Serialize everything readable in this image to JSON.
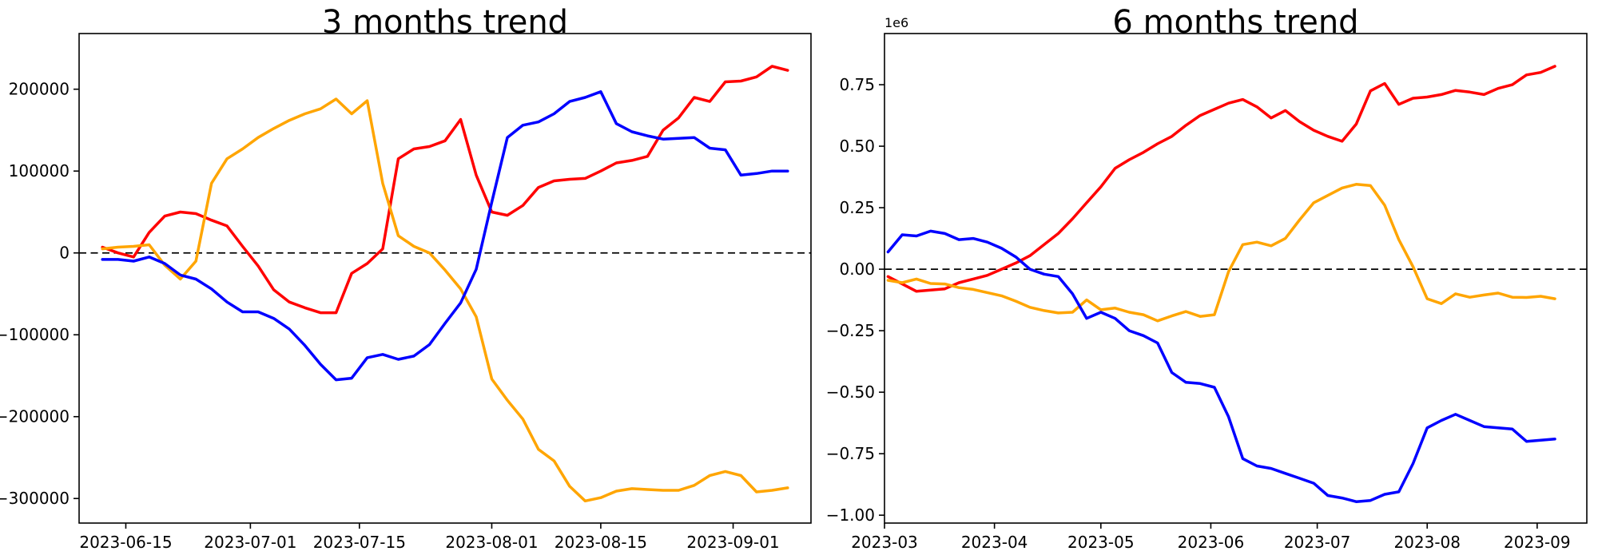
{
  "chart_data": [
    {
      "type": "line",
      "title": "3 months trend",
      "xlabel": "",
      "ylabel": "",
      "grid": false,
      "legend": "none",
      "zero_line_dashed": true,
      "xlim": [
        "2023-06-09",
        "2023-09-11"
      ],
      "ylim": [
        -330000,
        268000
      ],
      "x_ticks": [
        {
          "date": "2023-06-15",
          "label": "2023-06-15"
        },
        {
          "date": "2023-07-01",
          "label": "2023-07-01"
        },
        {
          "date": "2023-07-15",
          "label": "2023-07-15"
        },
        {
          "date": "2023-08-01",
          "label": "2023-08-01"
        },
        {
          "date": "2023-08-15",
          "label": "2023-08-15"
        },
        {
          "date": "2023-09-01",
          "label": "2023-09-01"
        }
      ],
      "y_ticks": [
        {
          "value": 200000,
          "label": "200000"
        },
        {
          "value": 100000,
          "label": "100000"
        },
        {
          "value": 0,
          "label": "0"
        },
        {
          "value": -100000,
          "label": "−100000"
        },
        {
          "value": -200000,
          "label": "−200000"
        },
        {
          "value": -300000,
          "label": "−300000"
        }
      ],
      "dates": [
        "2023-06-12",
        "2023-06-14",
        "2023-06-16",
        "2023-06-18",
        "2023-06-20",
        "2023-06-22",
        "2023-06-24",
        "2023-06-26",
        "2023-06-28",
        "2023-06-30",
        "2023-07-02",
        "2023-07-04",
        "2023-07-06",
        "2023-07-08",
        "2023-07-10",
        "2023-07-12",
        "2023-07-14",
        "2023-07-16",
        "2023-07-18",
        "2023-07-20",
        "2023-07-22",
        "2023-07-24",
        "2023-07-26",
        "2023-07-28",
        "2023-07-30",
        "2023-08-01",
        "2023-08-03",
        "2023-08-05",
        "2023-08-07",
        "2023-08-09",
        "2023-08-11",
        "2023-08-13",
        "2023-08-15",
        "2023-08-17",
        "2023-08-19",
        "2023-08-21",
        "2023-08-23",
        "2023-08-25",
        "2023-08-27",
        "2023-08-29",
        "2023-08-31",
        "2023-09-02",
        "2023-09-04",
        "2023-09-06",
        "2023-09-08"
      ],
      "series": [
        {
          "name": "red-line",
          "color": "#ff0000",
          "values": [
            7000,
            0,
            -5000,
            25000,
            45000,
            50000,
            48000,
            40000,
            33000,
            8000,
            -16000,
            -45000,
            -60000,
            -67000,
            -73000,
            -73000,
            -25000,
            -13000,
            5000,
            115000,
            127000,
            130000,
            137000,
            163000,
            95000,
            50000,
            46000,
            58000,
            80000,
            88000,
            90000,
            91000,
            100000,
            110000,
            113000,
            118000,
            150000,
            165000,
            190000,
            185000,
            209000,
            210000,
            215000,
            228000,
            223000
          ]
        },
        {
          "name": "orange-line",
          "color": "#ffa500",
          "values": [
            5000,
            7000,
            8000,
            10000,
            -15000,
            -32000,
            -10000,
            85000,
            115000,
            127000,
            141000,
            152000,
            162000,
            170000,
            176000,
            188000,
            170000,
            186000,
            85000,
            21000,
            8000,
            0,
            -21000,
            -44000,
            -78000,
            -154000,
            -180000,
            -203000,
            -240000,
            -254000,
            -285000,
            -303000,
            -299000,
            -291000,
            -288000,
            -289000,
            -290000,
            -290000,
            -284000,
            -272000,
            -267000,
            -272000,
            -292000,
            -290000,
            -287000
          ]
        },
        {
          "name": "blue-line",
          "color": "#0000ff",
          "values": [
            -8000,
            -8000,
            -10000,
            -5000,
            -13000,
            -27000,
            -32000,
            -44000,
            -60000,
            -72000,
            -72000,
            -80000,
            -93000,
            -113000,
            -136000,
            -155000,
            -153000,
            -128000,
            -124000,
            -130000,
            -126000,
            -112000,
            -86000,
            -61000,
            -20000,
            62000,
            141000,
            156000,
            160000,
            170000,
            185000,
            190000,
            197000,
            158000,
            148000,
            143000,
            139000,
            140000,
            141000,
            128000,
            126000,
            95000,
            97000,
            100000,
            100000
          ]
        }
      ]
    },
    {
      "type": "line",
      "title": "6 months trend",
      "xlabel": "",
      "ylabel": "",
      "grid": false,
      "legend": "none",
      "zero_line_dashed": true,
      "offset_label": "1e6",
      "xlim": [
        "2023-03-01",
        "2023-09-15"
      ],
      "ylim": [
        -1032000,
        958000
      ],
      "x_ticks": [
        {
          "date": "2023-03-01",
          "label": "2023-03"
        },
        {
          "date": "2023-04-01",
          "label": "2023-04"
        },
        {
          "date": "2023-05-01",
          "label": "2023-05"
        },
        {
          "date": "2023-06-01",
          "label": "2023-06"
        },
        {
          "date": "2023-07-01",
          "label": "2023-07"
        },
        {
          "date": "2023-08-01",
          "label": "2023-08"
        },
        {
          "date": "2023-09-01",
          "label": "2023-09"
        }
      ],
      "y_ticks": [
        {
          "value": 750000,
          "label": "0.75"
        },
        {
          "value": 500000,
          "label": "0.50"
        },
        {
          "value": 250000,
          "label": "0.25"
        },
        {
          "value": 0,
          "label": "0.00"
        },
        {
          "value": -250000,
          "label": "−0.25"
        },
        {
          "value": -500000,
          "label": "−0.50"
        },
        {
          "value": -750000,
          "label": "−0.75"
        },
        {
          "value": -1000000,
          "label": "−1.00"
        }
      ],
      "dates": [
        "2023-03-02",
        "2023-03-06",
        "2023-03-10",
        "2023-03-14",
        "2023-03-18",
        "2023-03-22",
        "2023-03-26",
        "2023-03-30",
        "2023-04-03",
        "2023-04-07",
        "2023-04-11",
        "2023-04-15",
        "2023-04-19",
        "2023-04-23",
        "2023-04-27",
        "2023-05-01",
        "2023-05-05",
        "2023-05-09",
        "2023-05-13",
        "2023-05-17",
        "2023-05-21",
        "2023-05-25",
        "2023-05-29",
        "2023-06-02",
        "2023-06-06",
        "2023-06-10",
        "2023-06-14",
        "2023-06-18",
        "2023-06-22",
        "2023-06-26",
        "2023-06-30",
        "2023-07-04",
        "2023-07-08",
        "2023-07-12",
        "2023-07-16",
        "2023-07-20",
        "2023-07-24",
        "2023-07-28",
        "2023-08-01",
        "2023-08-05",
        "2023-08-09",
        "2023-08-13",
        "2023-08-17",
        "2023-08-21",
        "2023-08-25",
        "2023-08-29",
        "2023-09-02",
        "2023-09-06"
      ],
      "series": [
        {
          "name": "red-line",
          "color": "#ff0000",
          "values": [
            -30000,
            -60000,
            -90000,
            -85000,
            -80000,
            -55000,
            -40000,
            -25000,
            0,
            25000,
            55000,
            100000,
            145000,
            205000,
            270000,
            335000,
            410000,
            445000,
            475000,
            510000,
            540000,
            585000,
            625000,
            650000,
            675000,
            690000,
            660000,
            615000,
            645000,
            600000,
            565000,
            540000,
            520000,
            590000,
            725000,
            755000,
            670000,
            695000,
            700000,
            710000,
            727000,
            720000,
            710000,
            735000,
            750000,
            790000,
            800000,
            825000
          ]
        },
        {
          "name": "orange-line",
          "color": "#ffa500",
          "values": [
            -45000,
            -55000,
            -40000,
            -58000,
            -60000,
            -75000,
            -82000,
            -95000,
            -108000,
            -130000,
            -155000,
            -168000,
            -178000,
            -175000,
            -125000,
            -165000,
            -158000,
            -175000,
            -185000,
            -210000,
            -190000,
            -172000,
            -192000,
            -185000,
            -10000,
            100000,
            110000,
            95000,
            125000,
            200000,
            270000,
            300000,
            330000,
            345000,
            340000,
            260000,
            120000,
            10000,
            -120000,
            -140000,
            -100000,
            -114000,
            -105000,
            -97000,
            -114000,
            -115000,
            -110000,
            -120000
          ]
        },
        {
          "name": "blue-line",
          "color": "#0000ff",
          "values": [
            70000,
            140000,
            135000,
            155000,
            145000,
            120000,
            125000,
            110000,
            85000,
            50000,
            0,
            -20000,
            -30000,
            -100000,
            -200000,
            -175000,
            -200000,
            -250000,
            -270000,
            -300000,
            -420000,
            -460000,
            -465000,
            -480000,
            -600000,
            -770000,
            -800000,
            -810000,
            -830000,
            -850000,
            -870000,
            -920000,
            -930000,
            -945000,
            -940000,
            -915000,
            -905000,
            -790000,
            -645000,
            -615000,
            -590000,
            -615000,
            -640000,
            -645000,
            -650000,
            -700000,
            -695000,
            -690000
          ]
        }
      ]
    }
  ]
}
